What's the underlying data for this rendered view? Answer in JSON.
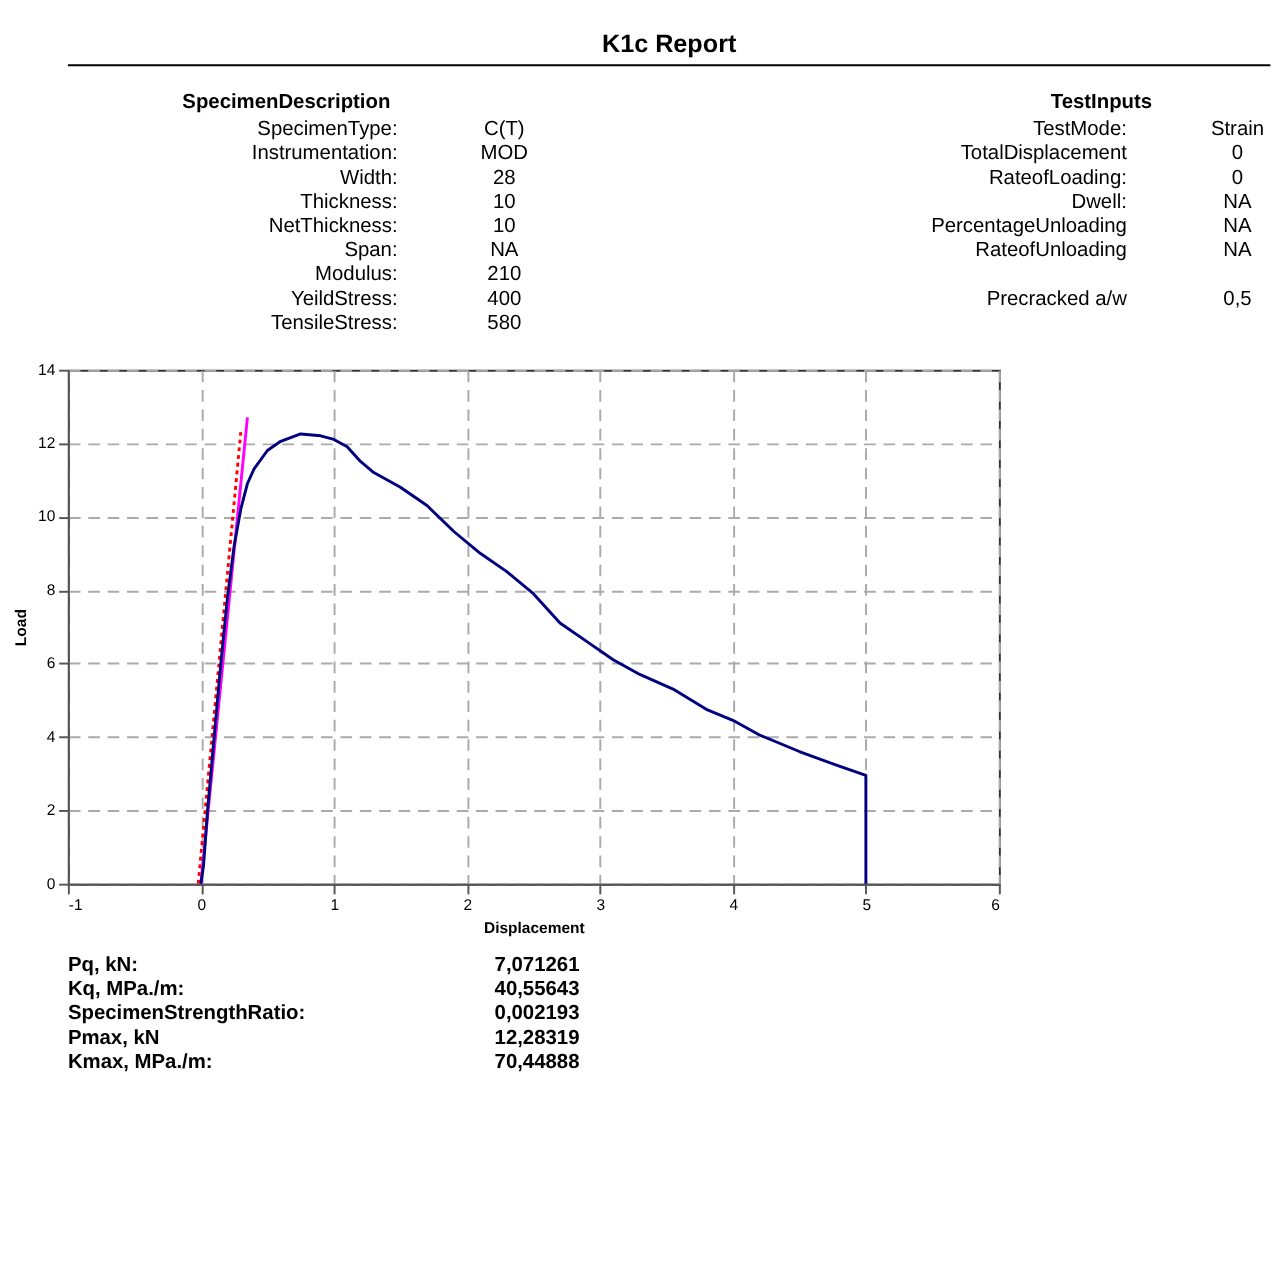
{
  "chart_data": {
    "type": "line",
    "title": "K1c Report",
    "xlabel": "Displacement",
    "ylabel": "Load",
    "xlim": [
      -1,
      6
    ],
    "xticks": [
      -1,
      0,
      1,
      2,
      3,
      4,
      5,
      6
    ],
    "ylim": [
      0,
      14
    ],
    "yticks": [
      0,
      2,
      4,
      6,
      8,
      10,
      12,
      14
    ],
    "grid": true,
    "marker": "none",
    "series": [
      {
        "color": "#ff0000",
        "line_style": "dotted",
        "x": [
          -0.02,
          0.3
        ],
        "values": [
          0,
          12.3
        ]
      },
      {
        "color": "#ff00ff",
        "line_style": "solid",
        "x": [
          0,
          0.35
        ],
        "values": [
          0,
          12.7
        ]
      },
      {
        "color": "#000080",
        "line_style": "solid",
        "x": [
          0,
          0.02,
          0.05,
          0.1,
          0.15,
          0.2,
          0.25,
          0.3,
          0.35,
          0.4,
          0.5,
          0.6,
          0.75,
          0.9,
          1.0,
          1.1,
          1.2,
          1.3,
          1.5,
          1.7,
          1.9,
          2.1,
          2.3,
          2.5,
          2.7,
          2.9,
          3.1,
          3.3,
          3.55,
          3.8,
          4.0,
          4.2,
          4.5,
          4.8,
          5.0,
          5.0
        ],
        "values": [
          0,
          0.5,
          2,
          4,
          6,
          7.8,
          9.2,
          10.2,
          10.9,
          11.3,
          11.8,
          12.05,
          12.25,
          12.2,
          12.1,
          11.9,
          11.5,
          11.2,
          10.8,
          10.3,
          9.6,
          9.0,
          8.5,
          7.9,
          7.1,
          6.6,
          6.1,
          5.7,
          5.3,
          4.75,
          4.45,
          4.05,
          3.6,
          3.2,
          2.95,
          0
        ]
      }
    ],
    "annotations": [
      "SpecimenDescription",
      "SpecimenType:",
      "C(T)",
      "Instrumentation:",
      "MOD",
      "Width:",
      "28",
      "Thickness:",
      "10",
      "NetThickness:",
      "10",
      "Span:",
      "NA",
      "Modulus:",
      "210",
      "YeildStress:",
      "400",
      "TensileStress:",
      "580",
      "TestInputs",
      "TestMode:",
      "Strain",
      "TotalDisplacement",
      "0",
      "RateofLoading:",
      "0",
      "Dwell:",
      "NA",
      "PercentageUnloading",
      "NA",
      "RateofUnloading",
      "NA",
      "Precracked a/w",
      "0,5",
      "Pq, kN:",
      "7,071261",
      "Kq, MPa./m:",
      "40,55643",
      "SpecimenStrengthRatio:",
      "0,002193",
      "Pmax, kN",
      "12,28319",
      "Kmax, MPa./m:",
      "70,44888"
    ]
  }
}
